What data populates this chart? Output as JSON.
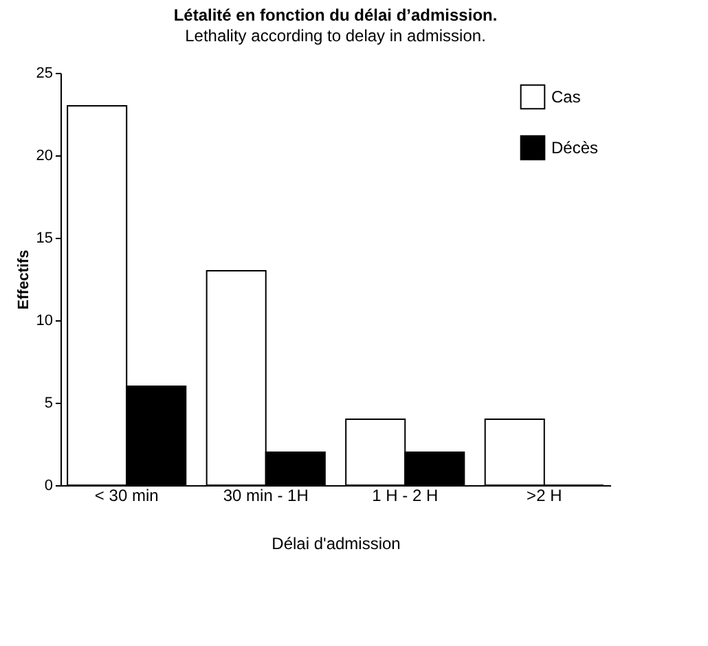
{
  "chart_data": {
    "type": "bar",
    "title": "Létalité en fonction du délai d’admission.",
    "subtitle": "Lethality according to delay in admission.",
    "xlabel": "Délai d'admission",
    "ylabel": "Effectifs",
    "categories": [
      "< 30 min",
      "30 min - 1H",
      "1 H - 2 H",
      ">2 H"
    ],
    "series": [
      {
        "name": "Cas",
        "color": "#ffffff",
        "values": [
          23,
          13,
          4,
          4
        ]
      },
      {
        "name": "Décès",
        "color": "#000000",
        "values": [
          6,
          2,
          2,
          0
        ]
      }
    ],
    "ylim": [
      0,
      25
    ],
    "yticks": [
      0,
      5,
      10,
      15,
      20,
      25
    ],
    "grid": false,
    "legend": "top right"
  }
}
